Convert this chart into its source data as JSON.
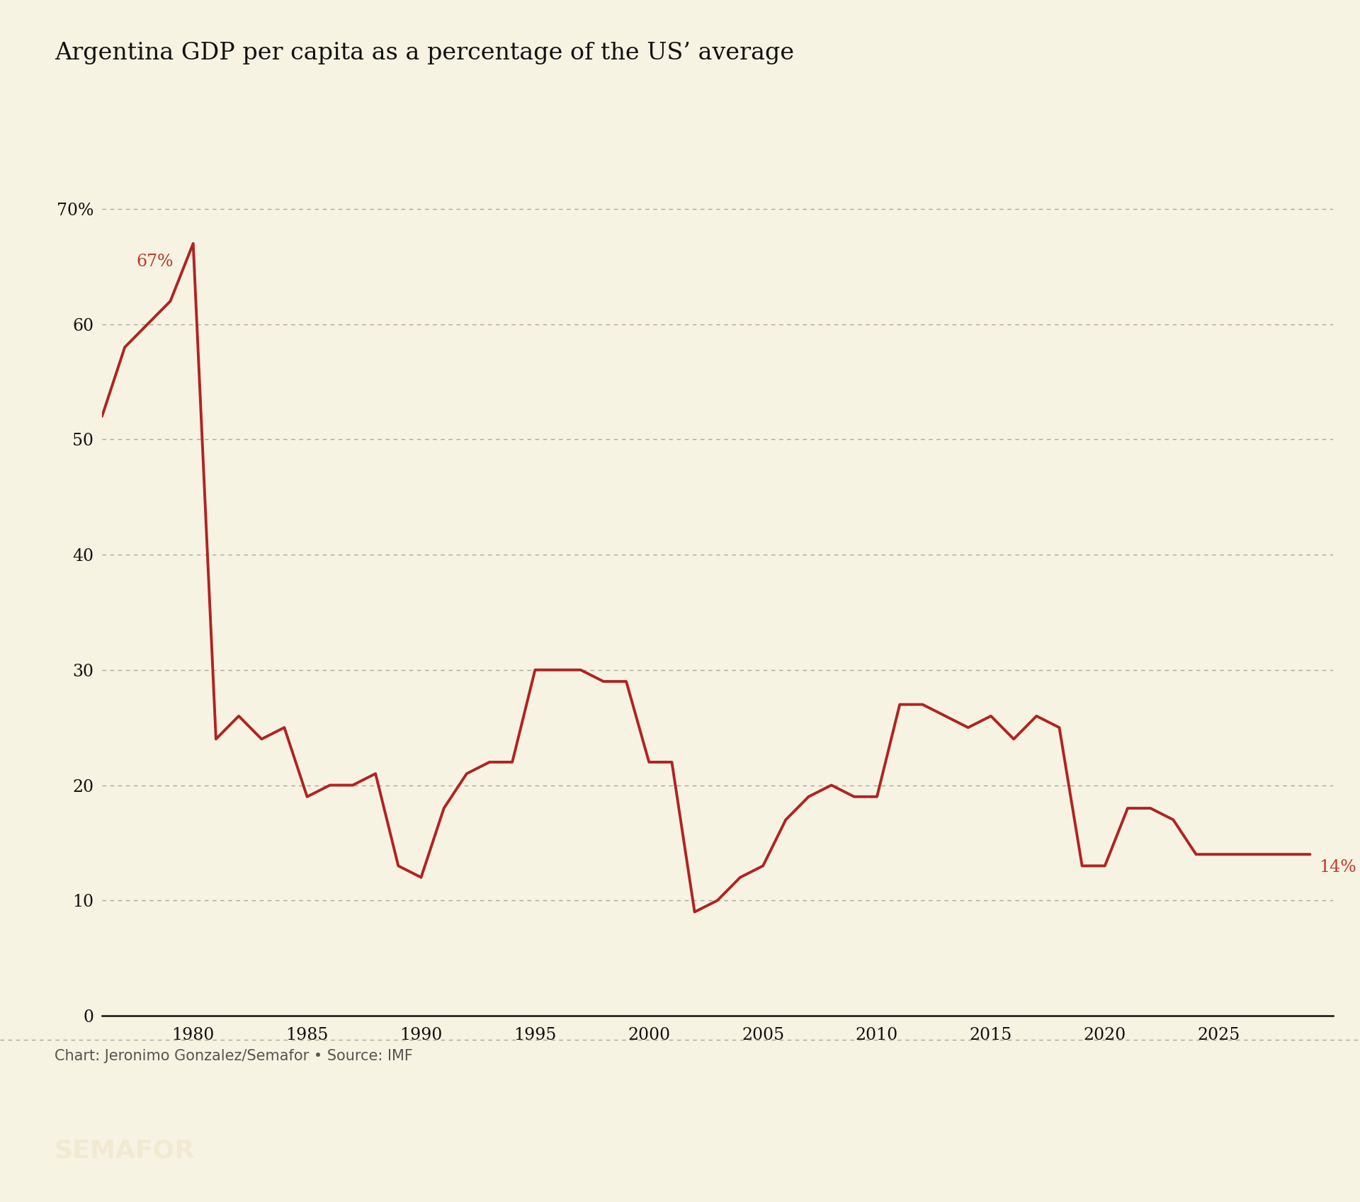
{
  "title": "Argentina GDP per capita as a percentage of the US’ average",
  "background_color": "#f7f3e3",
  "line_color": "#b22222",
  "annotation_color": "#c0392b",
  "grid_color": "#aaa898",
  "axis_color": "#111111",
  "footer_text": "Chart: Jeronimo Gonzalez/Semafor • Source: IMF",
  "semafor_text": "SEMAFOR",
  "years": [
    1976,
    1977,
    1978,
    1979,
    1980,
    1981,
    1982,
    1983,
    1984,
    1985,
    1986,
    1987,
    1988,
    1989,
    1990,
    1991,
    1992,
    1993,
    1994,
    1995,
    1996,
    1997,
    1998,
    1999,
    2000,
    2001,
    2002,
    2003,
    2004,
    2005,
    2006,
    2007,
    2008,
    2009,
    2010,
    2011,
    2012,
    2013,
    2014,
    2015,
    2016,
    2017,
    2018,
    2019,
    2020,
    2021,
    2022,
    2023,
    2024,
    2025,
    2026,
    2027,
    2028,
    2029
  ],
  "values": [
    52,
    58,
    60,
    62,
    67,
    24,
    26,
    24,
    25,
    19,
    20,
    20,
    21,
    13,
    12,
    18,
    21,
    22,
    22,
    30,
    30,
    30,
    29,
    29,
    22,
    22,
    9,
    10,
    12,
    13,
    17,
    19,
    20,
    19,
    19,
    27,
    27,
    26,
    25,
    26,
    24,
    26,
    25,
    13,
    13,
    18,
    18,
    17,
    14,
    14,
    14,
    14,
    14,
    14
  ],
  "peak_year": 1980,
  "peak_value": 67,
  "last_year": 2029,
  "last_value": 14,
  "xlim_start": 1976,
  "xlim_end": 2030,
  "ylim": [
    0,
    73
  ],
  "yticks": [
    0,
    10,
    20,
    30,
    40,
    50,
    60,
    70
  ],
  "ytick_labels": [
    "0",
    "10",
    "20",
    "30",
    "40",
    "50",
    "60",
    "70%"
  ],
  "xticks": [
    1980,
    1985,
    1990,
    1995,
    2000,
    2005,
    2010,
    2015,
    2020,
    2025
  ],
  "title_fontsize": 24,
  "tick_fontsize": 17,
  "footer_fontsize": 15,
  "semafor_fontsize": 26,
  "annotation_fontsize": 17,
  "line_width": 2.8
}
